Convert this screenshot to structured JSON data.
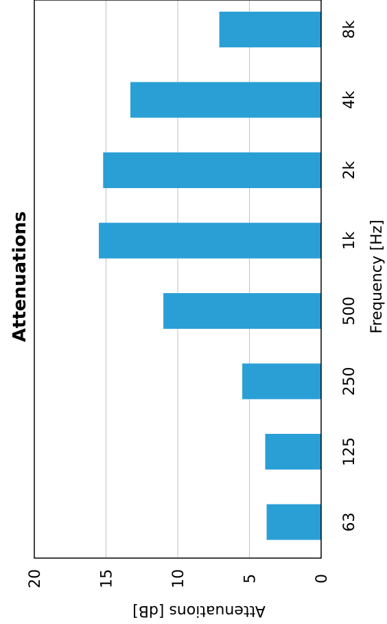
{
  "chart_data": {
    "type": "bar",
    "orientation": "rotated",
    "title": "Attenuations",
    "xlabel": "Frequency [Hz]",
    "ylabel": "Attenuations [dB]",
    "categories": [
      "63",
      "125",
      "250",
      "500",
      "1k",
      "2k",
      "4k",
      "8k"
    ],
    "values": [
      3.8,
      3.9,
      5.5,
      11.0,
      15.5,
      15.2,
      13.3,
      7.1
    ],
    "ylim": [
      0,
      20
    ],
    "yticks": [
      "0",
      "5",
      "10",
      "15",
      "20"
    ],
    "grid": true,
    "legend": "none",
    "colors": {
      "bar": "#2a9fd6",
      "grid": "#c0c0c0",
      "axis": "#000000"
    }
  }
}
